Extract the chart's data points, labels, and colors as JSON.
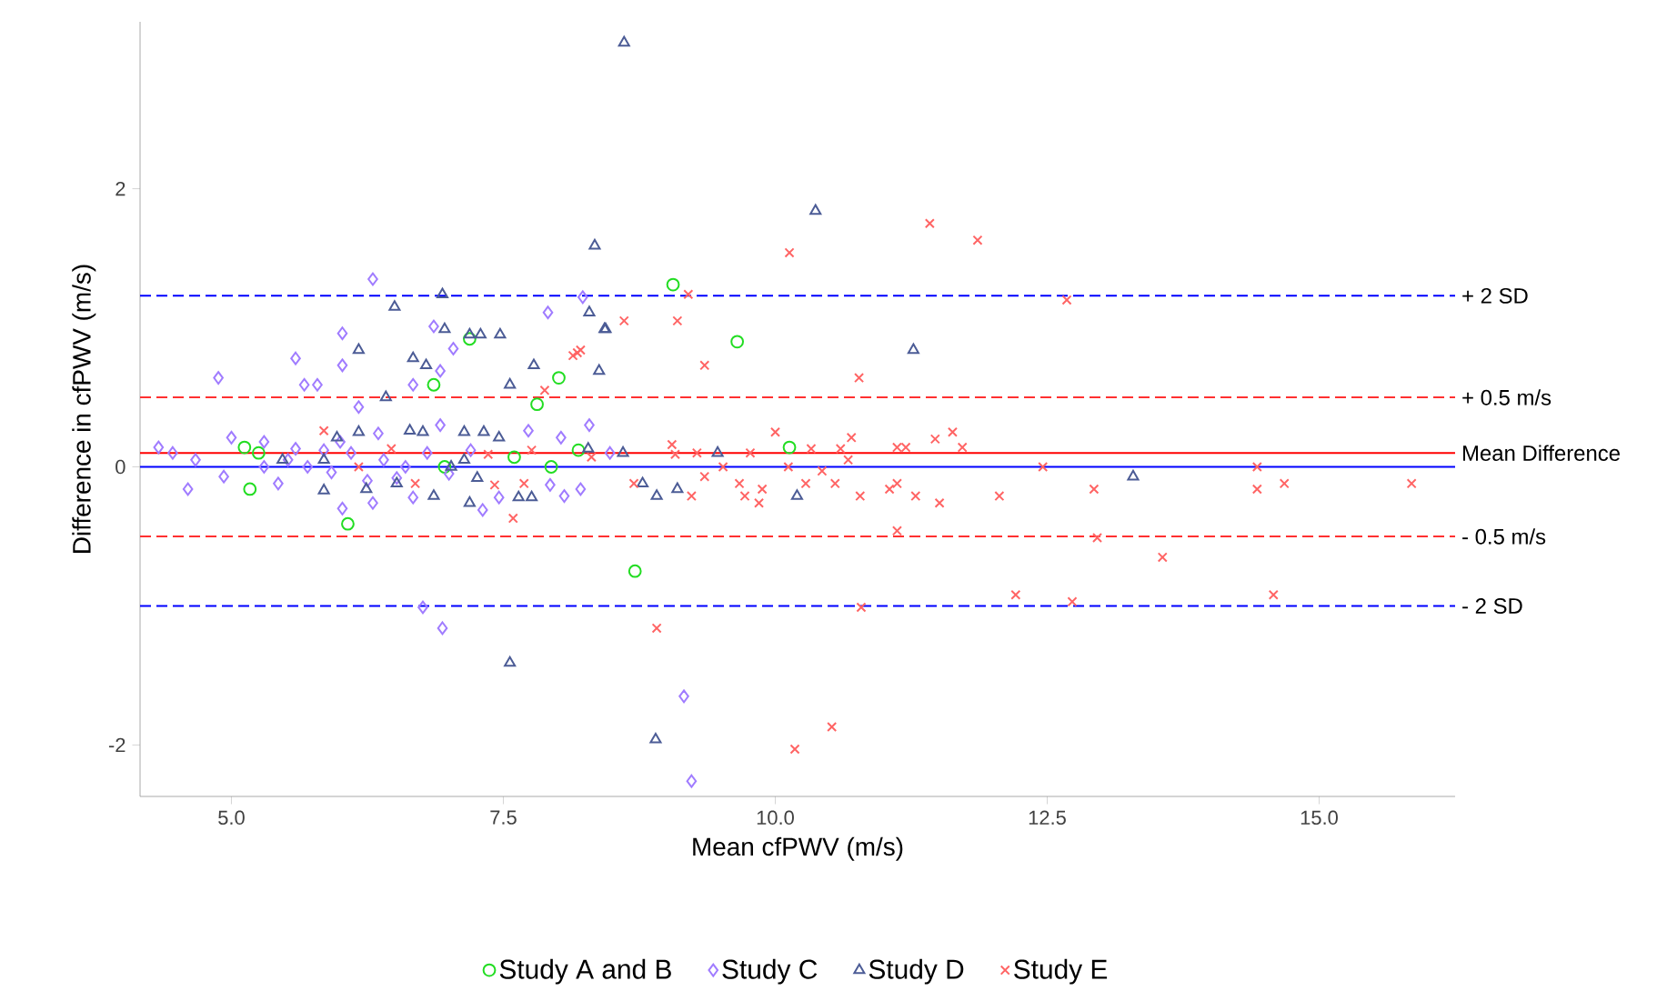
{
  "chart_data": {
    "type": "scatter",
    "xlabel": "Mean cfPWV (m/s)",
    "ylabel": "Difference in cfPWV (m/s)",
    "xlim": [
      4.16,
      16.25
    ],
    "ylim": [
      -2.37,
      3.2
    ],
    "xticks": [
      {
        "value": 5,
        "label": "5.0"
      },
      {
        "value": 7.5,
        "label": "7.5"
      },
      {
        "value": 10,
        "label": "10.0"
      },
      {
        "value": 12.5,
        "label": "12.5"
      },
      {
        "value": 15,
        "label": "15.0"
      }
    ],
    "yticks": [
      -2,
      0,
      2
    ],
    "grid": false,
    "legend": "bottom",
    "ref_lines": [
      {
        "axis": "y",
        "value": 1.23,
        "label": "+ 2 SD",
        "color": "#0000ff",
        "line_style": "dashed"
      },
      {
        "axis": "y",
        "value": 0.5,
        "label": "+ 0.5 m/s",
        "color": "#ff3030",
        "line_style": "dashed"
      },
      {
        "axis": "y",
        "value": 0.1,
        "label": "Mean Difference",
        "color": "#ff0000",
        "line_style": "solid"
      },
      {
        "axis": "y",
        "value": 0,
        "color": "#0000ff",
        "line_style": "solid"
      },
      {
        "axis": "y",
        "value": -0.5,
        "label": "- 0.5 m/s",
        "color": "#ff3030",
        "line_style": "dashed"
      },
      {
        "axis": "y",
        "value": -1.0,
        "label": "- 2 SD",
        "color": "#0000ff",
        "line_style": "dashed"
      }
    ],
    "series": [
      {
        "name": "Study A and B",
        "color": "#22dd22",
        "marker": "circle",
        "x": [
          5.12,
          5.17,
          5.25,
          6.07,
          6.86,
          6.96,
          7.19,
          7.6,
          7.81,
          7.94,
          8.01,
          8.19,
          8.71,
          9.06,
          9.65,
          10.13
        ],
        "values": [
          0.14,
          -0.16,
          0.1,
          -0.41,
          0.59,
          0,
          0.92,
          0.07,
          0.45,
          0,
          0.64,
          0.12,
          -0.75,
          1.31,
          0.9,
          0.14
        ]
      },
      {
        "name": "Study C",
        "color": "#a07cff",
        "marker": "diamond",
        "x": [
          4.33,
          4.46,
          4.67,
          4.6,
          4.88,
          5.0,
          4.93,
          5.3,
          5.3,
          5.43,
          5.59,
          5.67,
          5.79,
          5.59,
          5.7,
          6.02,
          6.02,
          6.17,
          6.3,
          6.02,
          6.3,
          6.35,
          6.67,
          6.67,
          6.86,
          6.92,
          7.04,
          6.92,
          6.76,
          6.94,
          7.31,
          7.46,
          7.73,
          7.91,
          8.06,
          8.21,
          8.29,
          8.23,
          8.03,
          6.52,
          5.92,
          5.52,
          8.48,
          7.93,
          9.16,
          9.23,
          6.1,
          6.4,
          6.6,
          7.0,
          7.2,
          6.8,
          6.25,
          5.85,
          6.0
        ],
        "values": [
          0.14,
          0.1,
          0.05,
          -0.16,
          0.64,
          0.21,
          -0.07,
          0.18,
          0,
          -0.12,
          0.78,
          0.59,
          0.59,
          0.13,
          0,
          0.96,
          0.73,
          0.43,
          1.35,
          -0.3,
          -0.26,
          0.24,
          0.59,
          -0.22,
          1.01,
          0.69,
          0.85,
          0.3,
          -1.01,
          -1.16,
          -0.31,
          -0.22,
          0.26,
          1.11,
          -0.21,
          -0.16,
          0.3,
          1.22,
          0.21,
          -0.08,
          -0.04,
          0.05,
          0.1,
          -0.13,
          -1.65,
          -2.26,
          0.1,
          0.05,
          0,
          -0.05,
          0.12,
          0.1,
          -0.1,
          0.12,
          0.18
        ]
      },
      {
        "name": "Study D",
        "color": "#4c5c96",
        "marker": "triangle",
        "x": [
          8.34,
          6.5,
          6.94,
          6.96,
          7.19,
          7.29,
          7.47,
          8.29,
          8.43,
          8.38,
          7.78,
          7.56,
          6.17,
          6.67,
          6.79,
          6.42,
          5.97,
          6.17,
          6.64,
          6.76,
          7.14,
          7.32,
          7.46,
          5.85,
          6.24,
          6.52,
          6.86,
          7.19,
          7.64,
          7.76,
          7.56,
          5.85,
          7.14,
          7.26,
          7.02,
          5.47,
          8.28,
          8.61,
          10.37,
          8.44,
          11.27,
          8.6,
          9.47,
          8.78,
          8.91,
          9.1,
          10.2,
          8.9,
          13.29
        ],
        "values": [
          1.59,
          1.15,
          1.24,
          0.99,
          0.95,
          0.95,
          0.95,
          1.11,
          0.99,
          0.69,
          0.73,
          0.59,
          0.84,
          0.78,
          0.73,
          0.5,
          0.21,
          0.25,
          0.26,
          0.25,
          0.25,
          0.25,
          0.21,
          -0.17,
          -0.16,
          -0.12,
          -0.21,
          -0.26,
          -0.22,
          -0.22,
          -1.41,
          0.05,
          0.05,
          -0.08,
          0,
          0.05,
          0.13,
          3.05,
          1.84,
          0.99,
          0.84,
          0.1,
          0.1,
          -0.12,
          -0.21,
          -0.16,
          -0.21,
          -1.96,
          -0.07
        ]
      },
      {
        "name": "Study E",
        "color": "#ff6464",
        "marker": "cross",
        "x": [
          5.85,
          8.18,
          7.88,
          7.59,
          6.69,
          7.69,
          6.17,
          6.47,
          7.36,
          7.76,
          8.31,
          7.42,
          9.2,
          8.61,
          9.1,
          8.14,
          8.21,
          9.35,
          10.77,
          10.13,
          11.42,
          11.86,
          10.0,
          9.05,
          9.28,
          9.77,
          10.33,
          10.6,
          10.7,
          11.12,
          11.2,
          11.47,
          11.63,
          11.72,
          8.7,
          9.35,
          9.52,
          9.67,
          9.72,
          9.85,
          9.88,
          10.12,
          10.28,
          10.43,
          10.55,
          10.67,
          10.78,
          11.05,
          11.12,
          11.29,
          11.51,
          12.06,
          11.12,
          10.79,
          8.91,
          10.18,
          10.52,
          9.08,
          9.23,
          12.68,
          12.46,
          12.93,
          14.43,
          14.43,
          14.68,
          15.85,
          12.96,
          13.56,
          12.21,
          12.73,
          14.58
        ],
        "values": [
          0.26,
          0.82,
          0.55,
          -0.37,
          -0.12,
          -0.12,
          0,
          0.13,
          0.09,
          0.12,
          0.07,
          -0.13,
          1.24,
          1.05,
          1.05,
          0.8,
          0.84,
          0.73,
          0.64,
          1.54,
          1.75,
          1.63,
          0.25,
          0.16,
          0.1,
          0.1,
          0.13,
          0.13,
          0.21,
          0.14,
          0.14,
          0.2,
          0.25,
          0.14,
          -0.12,
          -0.07,
          0,
          -0.12,
          -0.21,
          -0.26,
          -0.16,
          0,
          -0.12,
          -0.03,
          -0.12,
          0.05,
          -0.21,
          -0.16,
          -0.12,
          -0.21,
          -0.26,
          -0.21,
          -0.46,
          -1.01,
          -1.16,
          -2.03,
          -1.87,
          0.09,
          -0.21,
          1.2,
          0,
          -0.16,
          0,
          -0.16,
          -0.12,
          -0.12,
          -0.51,
          -0.65,
          -0.92,
          -0.97,
          -0.92
        ]
      }
    ]
  }
}
